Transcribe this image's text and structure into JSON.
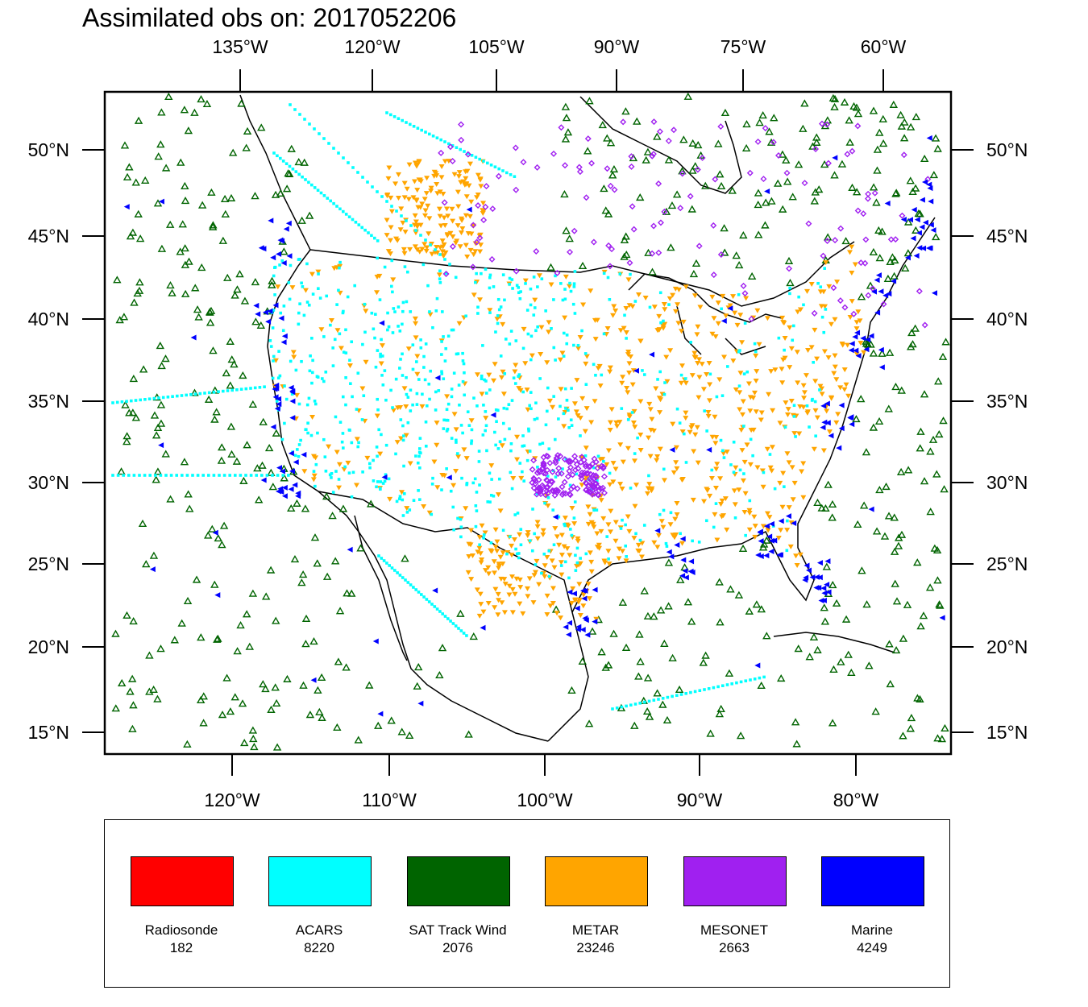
{
  "title": "Assimilated obs on: 2017052206",
  "top_axis": {
    "labels": [
      "135°W",
      "120°W",
      "105°W",
      "90°W",
      "75°W",
      "60°W"
    ]
  },
  "bottom_axis": {
    "labels": [
      "120°W",
      "110°W",
      "100°W",
      "90°W",
      "80°W"
    ]
  },
  "left_axis": {
    "labels": [
      "50°N",
      "45°N",
      "40°N",
      "35°N",
      "30°N",
      "25°N",
      "20°N",
      "15°N"
    ]
  },
  "right_axis": {
    "labels": [
      "50°N",
      "45°N",
      "40°N",
      "35°N",
      "30°N",
      "25°N",
      "20°N",
      "15°N"
    ]
  },
  "colors": {
    "radiosonde": "#ff0000",
    "acars": "#00ffff",
    "sat_track_wind": "#006400",
    "metar": "#ffa500",
    "mesonet": "#a020f0",
    "marine": "#0000ff"
  },
  "legend": [
    {
      "name": "Radiosonde",
      "count": "182",
      "color": "#ff0000"
    },
    {
      "name": "ACARS",
      "count": "8220",
      "color": "#00ffff"
    },
    {
      "name": "SAT Track Wind",
      "count": "2076",
      "color": "#006400"
    },
    {
      "name": "METAR",
      "count": "23246",
      "color": "#ffa500"
    },
    {
      "name": "MESONET",
      "count": "2663",
      "color": "#a020f0"
    },
    {
      "name": "Marine",
      "count": "4249",
      "color": "#0000ff"
    }
  ]
}
